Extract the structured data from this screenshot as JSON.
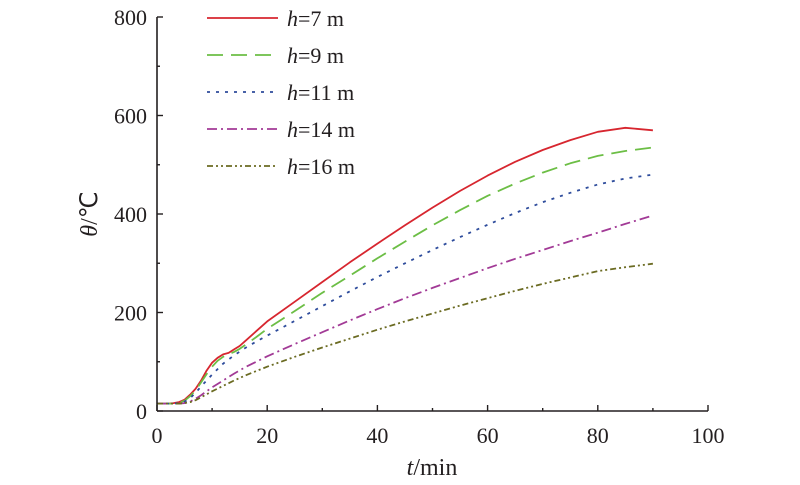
{
  "chart_data": {
    "type": "line",
    "xlabel": {
      "var": "t",
      "unit": "/min"
    },
    "ylabel": {
      "var": "θ",
      "unit": "/℃"
    },
    "xlim": [
      0,
      100
    ],
    "ylim": [
      0,
      800
    ],
    "xticks": [
      0,
      20,
      40,
      60,
      80,
      100
    ],
    "yticks": [
      0,
      200,
      400,
      600,
      800
    ],
    "grid": false,
    "legend_position": "top-left",
    "series": [
      {
        "name": "h=7 m",
        "var": "h",
        "rest": "=7 m",
        "color": "#d7262f",
        "dash": "solid",
        "x": [
          0,
          2,
          3,
          4,
          5,
          6,
          7,
          8,
          9,
          10,
          11,
          12,
          13,
          14,
          15,
          16,
          18,
          20,
          25,
          30,
          35,
          40,
          45,
          50,
          55,
          60,
          65,
          70,
          75,
          80,
          85,
          90
        ],
        "y": [
          15,
          15,
          16,
          18,
          23,
          33,
          45,
          62,
          82,
          98,
          108,
          115,
          118,
          125,
          132,
          142,
          162,
          182,
          222,
          262,
          302,
          340,
          377,
          413,
          447,
          478,
          506,
          530,
          550,
          567,
          575,
          570
        ]
      },
      {
        "name": "h=9 m",
        "var": "h",
        "rest": "=9 m",
        "color": "#6cbe45",
        "dash": "long-dash",
        "x": [
          0,
          3,
          4,
          5,
          6,
          7,
          8,
          9,
          10,
          11,
          12,
          13,
          14,
          15,
          16,
          18,
          20,
          25,
          30,
          35,
          40,
          45,
          50,
          55,
          60,
          65,
          70,
          75,
          80,
          85,
          90
        ],
        "y": [
          15,
          15,
          17,
          21,
          30,
          42,
          58,
          75,
          90,
          102,
          110,
          115,
          120,
          126,
          134,
          150,
          167,
          203,
          240,
          275,
          310,
          344,
          377,
          408,
          437,
          462,
          484,
          503,
          518,
          528,
          535
        ]
      },
      {
        "name": "h=11 m",
        "var": "h",
        "rest": "=11 m",
        "color": "#2e4c9c",
        "dash": "dotted",
        "x": [
          0,
          3,
          4,
          5,
          6,
          7,
          8,
          9,
          10,
          12,
          14,
          16,
          18,
          20,
          25,
          30,
          35,
          40,
          45,
          50,
          55,
          60,
          65,
          70,
          75,
          80,
          85,
          90
        ],
        "y": [
          15,
          15,
          16,
          19,
          26,
          37,
          50,
          62,
          74,
          96,
          113,
          128,
          141,
          153,
          183,
          213,
          243,
          272,
          300,
          327,
          353,
          378,
          402,
          424,
          443,
          460,
          472,
          480
        ]
      },
      {
        "name": "h=14 m",
        "var": "h",
        "rest": "=14 m",
        "color": "#a23a96",
        "dash": "dash-dot",
        "x": [
          0,
          4,
          5,
          6,
          7,
          8,
          9,
          10,
          12,
          14,
          16,
          18,
          20,
          25,
          30,
          35,
          40,
          45,
          50,
          55,
          60,
          65,
          70,
          75,
          80,
          85,
          90
        ],
        "y": [
          15,
          15,
          16,
          19,
          25,
          32,
          40,
          48,
          62,
          76,
          89,
          100,
          111,
          136,
          160,
          184,
          207,
          229,
          250,
          270,
          290,
          309,
          327,
          345,
          362,
          380,
          397
        ]
      },
      {
        "name": "h=16 m",
        "var": "h",
        "rest": "=16 m",
        "color": "#6b6b22",
        "dash": "dash-dot-dot",
        "x": [
          0,
          4,
          5,
          6,
          7,
          8,
          9,
          10,
          12,
          14,
          16,
          18,
          20,
          25,
          30,
          35,
          40,
          45,
          50,
          55,
          60,
          65,
          70,
          75,
          80,
          85,
          90
        ],
        "y": [
          15,
          15,
          16,
          18,
          22,
          28,
          34,
          40,
          51,
          62,
          72,
          81,
          90,
          110,
          129,
          147,
          165,
          182,
          198,
          214,
          229,
          244,
          258,
          271,
          284,
          292,
          299
        ]
      }
    ]
  }
}
